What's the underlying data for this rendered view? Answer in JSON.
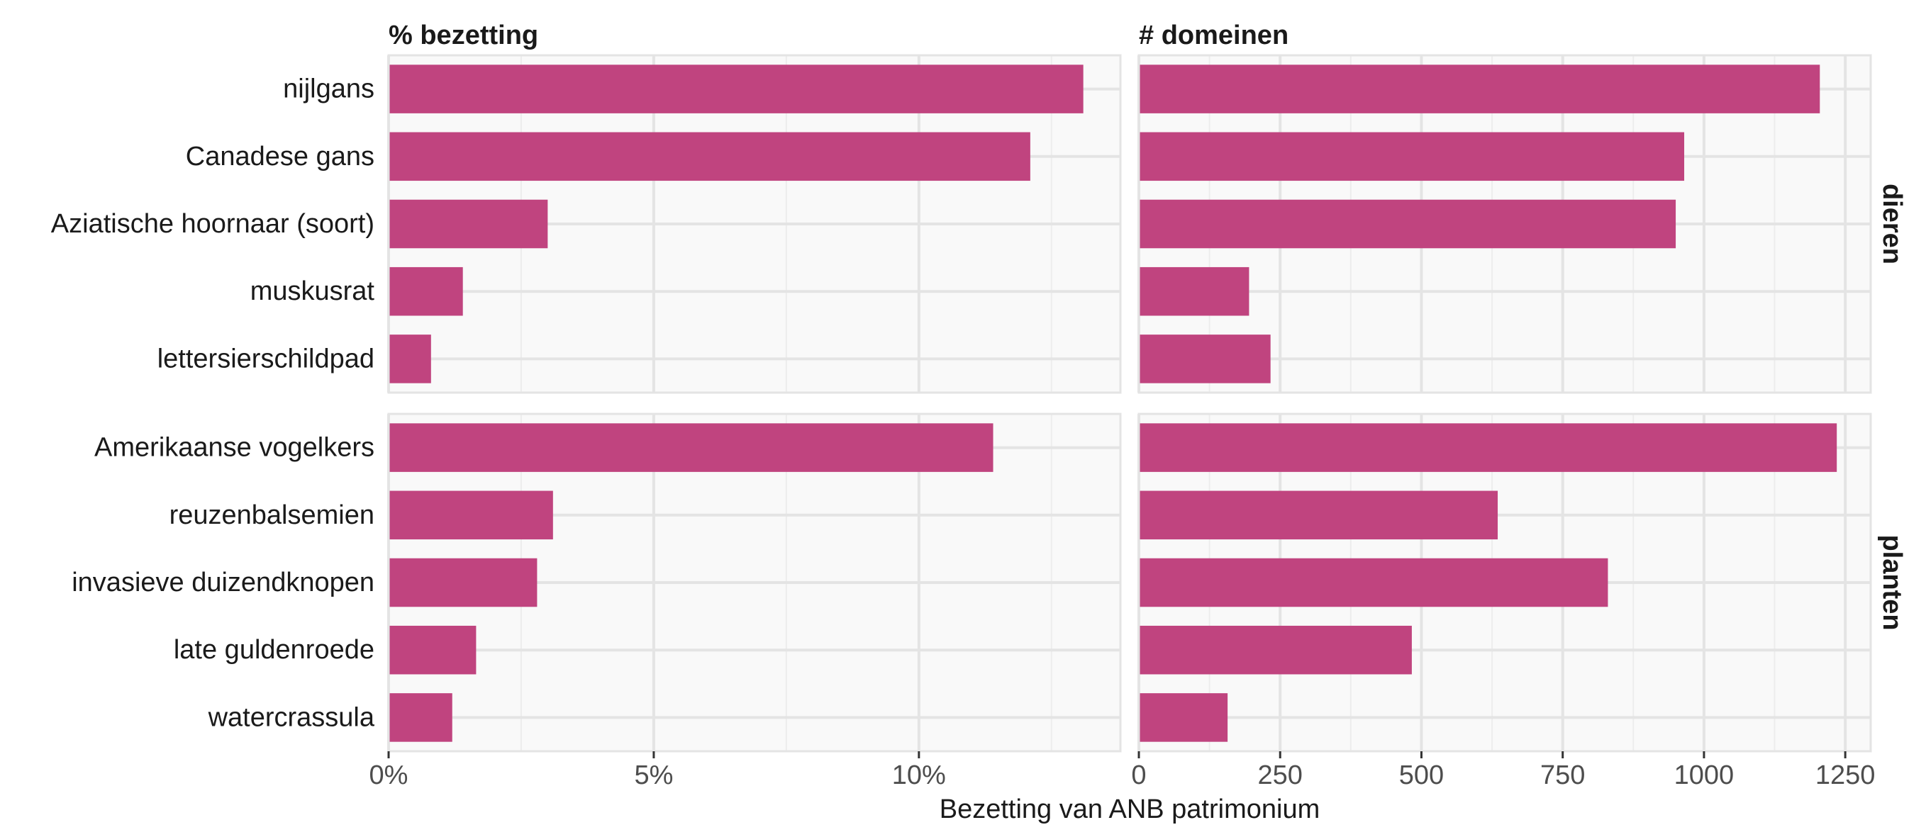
{
  "chart_data": {
    "type": "bar",
    "orientation": "horizontal",
    "xlabel": "Bezetting van ANB patrimonium",
    "bar_color": "#C0447F",
    "panel_background": "#F9F9F9",
    "grid_color": "#E4E4E4",
    "grid": true,
    "columns": [
      {
        "key": "pct",
        "title": "% bezetting",
        "xlim": [
          0,
          13.8
        ],
        "ticks": [
          0,
          5,
          10
        ],
        "tick_labels": [
          "0%",
          "5%",
          "10%"
        ]
      },
      {
        "key": "dom",
        "title": "# domeinen",
        "xlim": [
          0,
          1295
        ],
        "ticks": [
          0,
          250,
          500,
          750,
          1000,
          1250
        ],
        "tick_labels": [
          "0",
          "250",
          "500",
          "750",
          "1000",
          "1250"
        ]
      }
    ],
    "rows": [
      {
        "title": "dieren",
        "categories": [
          "nijlgans",
          "Canadese gans",
          "Aziatische hoornaar (soort)",
          "muskusrat",
          "lettersierschildpad"
        ],
        "pct": [
          13.1,
          12.1,
          3.0,
          1.4,
          0.8
        ],
        "dom": [
          1205,
          965,
          950,
          195,
          233
        ]
      },
      {
        "title": "planten",
        "categories": [
          "Amerikaanse vogelkers",
          "reuzenbalsemien",
          "invasieve duizendknopen",
          "late guldenroede",
          "watercrassula"
        ],
        "pct": [
          11.4,
          3.1,
          2.8,
          1.65,
          1.2
        ],
        "dom": [
          1235,
          635,
          830,
          483,
          157
        ]
      }
    ]
  }
}
